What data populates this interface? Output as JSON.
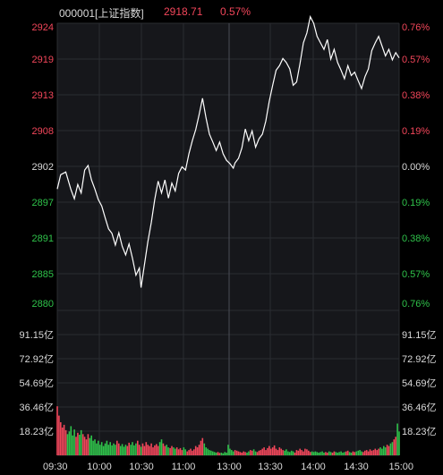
{
  "header": {
    "code_name": "000001[上证指数]",
    "price": "2918.71",
    "change_pct": "0.57%"
  },
  "colors": {
    "background": "#000000",
    "panel_bg": "#16171b",
    "grid": "#2a2c31",
    "up": "#f2465a",
    "down": "#2fc24a",
    "neutral": "#d9d9d9",
    "line": "#ffffff"
  },
  "price_axis": {
    "left": [
      "2924",
      "2919",
      "2913",
      "2908",
      "2902",
      "2897",
      "2891",
      "2885",
      "2880"
    ],
    "right": [
      "0.76%",
      "0.57%",
      "0.38%",
      "0.19%",
      "0.00%",
      "0.19%",
      "0.38%",
      "0.57%",
      "0.76%"
    ],
    "min": 2880,
    "max": 2924
  },
  "volume_axis": {
    "left": [
      "91.15亿",
      "72.92亿",
      "54.69亿",
      "36.46亿",
      "18.23亿"
    ],
    "right": [
      "91.15亿",
      "72.92亿",
      "54.69亿",
      "36.46亿",
      "18.23亿"
    ],
    "max": 109.38
  },
  "time_axis": [
    "09:30",
    "10:00",
    "10:30",
    "11:00",
    "13:00",
    "13:30",
    "14:00",
    "14:30",
    "15:00"
  ],
  "chart_data": {
    "type": "line",
    "price_series": [
      [
        0,
        2898.6
      ],
      [
        2,
        2900.8
      ],
      [
        5,
        2901.2
      ],
      [
        8,
        2898.5
      ],
      [
        10,
        2897.1
      ],
      [
        12,
        2899.3
      ],
      [
        14,
        2898.0
      ],
      [
        16,
        2901.5
      ],
      [
        18,
        2902.2
      ],
      [
        20,
        2900.0
      ],
      [
        22,
        2898.6
      ],
      [
        24,
        2897.0
      ],
      [
        26,
        2896.0
      ],
      [
        28,
        2894.2
      ],
      [
        30,
        2892.5
      ],
      [
        32,
        2891.8
      ],
      [
        34,
        2890.0
      ],
      [
        36,
        2891.9
      ],
      [
        38,
        2889.8
      ],
      [
        40,
        2888.5
      ],
      [
        42,
        2890.2
      ],
      [
        44,
        2888.0
      ],
      [
        46,
        2885.4
      ],
      [
        48,
        2886.5
      ],
      [
        49,
        2883.5
      ],
      [
        51,
        2887.0
      ],
      [
        53,
        2890.5
      ],
      [
        55,
        2893.5
      ],
      [
        57,
        2897.0
      ],
      [
        59,
        2899.8
      ],
      [
        61,
        2898.0
      ],
      [
        63,
        2900.0
      ],
      [
        65,
        2897.2
      ],
      [
        67,
        2899.5
      ],
      [
        69,
        2898.3
      ],
      [
        71,
        2901.0
      ],
      [
        73,
        2902.0
      ],
      [
        75,
        2901.5
      ],
      [
        77,
        2904.0
      ],
      [
        79,
        2906.0
      ],
      [
        81,
        2907.7
      ],
      [
        83,
        2910.0
      ],
      [
        85,
        2912.5
      ],
      [
        87,
        2909.5
      ],
      [
        89,
        2907.0
      ],
      [
        91,
        2905.8
      ],
      [
        93,
        2904.5
      ],
      [
        95,
        2905.8
      ],
      [
        97,
        2904.0
      ],
      [
        99,
        2903.0
      ],
      [
        101,
        2902.5
      ],
      [
        103,
        2901.8
      ],
      [
        104,
        2902.6
      ],
      [
        106,
        2903.3
      ],
      [
        108,
        2904.9
      ],
      [
        110,
        2907.8
      ],
      [
        112,
        2906.0
      ],
      [
        114,
        2907.5
      ],
      [
        116,
        2905.0
      ],
      [
        118,
        2906.3
      ],
      [
        120,
        2907.0
      ],
      [
        122,
        2909.0
      ],
      [
        124,
        2912.0
      ],
      [
        126,
        2914.5
      ],
      [
        128,
        2916.8
      ],
      [
        130,
        2917.5
      ],
      [
        132,
        2918.6
      ],
      [
        134,
        2918.0
      ],
      [
        136,
        2917.0
      ],
      [
        138,
        2914.5
      ],
      [
        140,
        2915.0
      ],
      [
        142,
        2917.8
      ],
      [
        144,
        2921.0
      ],
      [
        146,
        2922.5
      ],
      [
        148,
        2925.0
      ],
      [
        150,
        2924.0
      ],
      [
        152,
        2922.0
      ],
      [
        154,
        2921.0
      ],
      [
        156,
        2920.0
      ],
      [
        158,
        2921.5
      ],
      [
        160,
        2918.5
      ],
      [
        162,
        2920.0
      ],
      [
        164,
        2918.0
      ],
      [
        166,
        2916.8
      ],
      [
        168,
        2915.5
      ],
      [
        170,
        2917.5
      ],
      [
        172,
        2916.0
      ],
      [
        174,
        2916.5
      ],
      [
        176,
        2915.2
      ],
      [
        178,
        2914.0
      ],
      [
        180,
        2915.8
      ],
      [
        182,
        2917.0
      ],
      [
        184,
        2919.8
      ],
      [
        186,
        2921.0
      ],
      [
        188,
        2922.0
      ],
      [
        190,
        2920.5
      ],
      [
        192,
        2919.0
      ],
      [
        194,
        2920.0
      ],
      [
        196,
        2918.4
      ],
      [
        198,
        2919.5
      ],
      [
        200,
        2918.7
      ]
    ],
    "volume_series": [
      [
        0,
        37.0
      ],
      [
        1,
        30.0
      ],
      [
        2,
        25.0
      ],
      [
        3,
        21.0
      ],
      [
        4,
        23.0
      ],
      [
        5,
        19.0
      ],
      [
        6,
        16.0
      ],
      [
        7,
        18.0
      ],
      [
        8,
        22.0
      ],
      [
        9,
        15.0
      ],
      [
        10,
        19.5
      ],
      [
        11,
        14.0
      ],
      [
        12,
        17.0
      ],
      [
        13,
        15.5
      ],
      [
        14,
        19.0
      ],
      [
        15,
        16.0
      ],
      [
        16,
        14.0
      ],
      [
        17,
        12.0
      ],
      [
        18,
        16.0
      ],
      [
        19,
        13.0
      ],
      [
        20,
        15.0
      ],
      [
        21,
        11.0
      ],
      [
        22,
        12.0
      ],
      [
        23,
        9.0
      ],
      [
        24,
        11.0
      ],
      [
        25,
        8.0
      ],
      [
        26,
        10.0
      ],
      [
        27,
        7.0
      ],
      [
        28,
        9.0
      ],
      [
        29,
        11.0
      ],
      [
        30,
        8.0
      ],
      [
        31,
        10.0
      ],
      [
        32,
        7.5
      ],
      [
        33,
        9.0
      ],
      [
        34,
        8.0
      ],
      [
        35,
        11.0
      ],
      [
        36,
        9.0
      ],
      [
        37,
        7.0
      ],
      [
        38,
        8.5
      ],
      [
        39,
        6.5
      ],
      [
        40,
        8.0
      ],
      [
        41,
        7.0
      ],
      [
        42,
        9.5
      ],
      [
        43,
        8.0
      ],
      [
        44,
        10.0
      ],
      [
        45,
        7.5
      ],
      [
        46,
        9.0
      ],
      [
        47,
        11.0
      ],
      [
        48,
        8.0
      ],
      [
        49,
        6.5
      ],
      [
        50,
        9.0
      ],
      [
        51,
        7.0
      ],
      [
        52,
        10.0
      ],
      [
        53,
        8.0
      ],
      [
        54,
        7.0
      ],
      [
        55,
        9.0
      ],
      [
        56,
        6.0
      ],
      [
        57,
        7.5
      ],
      [
        58,
        8.5
      ],
      [
        59,
        7.0
      ],
      [
        60,
        10.0
      ],
      [
        61,
        12.0
      ],
      [
        62,
        9.0
      ],
      [
        63,
        7.0
      ],
      [
        64,
        8.0
      ],
      [
        65,
        6.0
      ],
      [
        66,
        5.5
      ],
      [
        67,
        7.0
      ],
      [
        68,
        6.0
      ],
      [
        69,
        5.0
      ],
      [
        70,
        6.0
      ],
      [
        71,
        4.5
      ],
      [
        72,
        5.5
      ],
      [
        73,
        4.0
      ],
      [
        74,
        6.0
      ],
      [
        75,
        4.5
      ],
      [
        76,
        3.0
      ],
      [
        77,
        4.0
      ],
      [
        78,
        5.0
      ],
      [
        79,
        3.5
      ],
      [
        80,
        4.5
      ],
      [
        81,
        7.0
      ],
      [
        82,
        6.0
      ],
      [
        83,
        8.0
      ],
      [
        84,
        11.0
      ],
      [
        85,
        13.0
      ],
      [
        86,
        9.0
      ],
      [
        87,
        6.0
      ],
      [
        88,
        5.0
      ],
      [
        89,
        4.0
      ],
      [
        90,
        3.5
      ],
      [
        91,
        3.0
      ],
      [
        92,
        2.5
      ],
      [
        93,
        2.0
      ],
      [
        94,
        2.5
      ],
      [
        95,
        1.8
      ],
      [
        96,
        2.0
      ],
      [
        97,
        1.5
      ],
      [
        98,
        2.5
      ],
      [
        99,
        2.0
      ],
      [
        100,
        8.0
      ],
      [
        101,
        5.0
      ],
      [
        102,
        4.0
      ],
      [
        103,
        3.0
      ],
      [
        104,
        4.0
      ],
      [
        105,
        3.5
      ],
      [
        106,
        3.0
      ],
      [
        107,
        2.5
      ],
      [
        108,
        2.0
      ],
      [
        109,
        3.0
      ],
      [
        110,
        2.5
      ],
      [
        111,
        2.0
      ],
      [
        112,
        3.0
      ],
      [
        113,
        4.0
      ],
      [
        114,
        3.5
      ],
      [
        115,
        4.5
      ],
      [
        116,
        3.0
      ],
      [
        117,
        2.5
      ],
      [
        118,
        3.5
      ],
      [
        119,
        4.0
      ],
      [
        120,
        5.0
      ],
      [
        121,
        6.0
      ],
      [
        122,
        4.0
      ],
      [
        123,
        5.5
      ],
      [
        124,
        7.0
      ],
      [
        125,
        5.0
      ],
      [
        126,
        6.0
      ],
      [
        127,
        7.5
      ],
      [
        128,
        5.0
      ],
      [
        129,
        4.0
      ],
      [
        130,
        6.0
      ],
      [
        131,
        5.0
      ],
      [
        132,
        4.0
      ],
      [
        133,
        3.5
      ],
      [
        134,
        4.5
      ],
      [
        135,
        3.0
      ],
      [
        136,
        2.5
      ],
      [
        137,
        3.5
      ],
      [
        138,
        3.0
      ],
      [
        139,
        2.0
      ],
      [
        140,
        4.0
      ],
      [
        141,
        3.5
      ],
      [
        142,
        5.0
      ],
      [
        143,
        4.0
      ],
      [
        144,
        3.0
      ],
      [
        145,
        5.0
      ],
      [
        146,
        4.5
      ],
      [
        147,
        3.5
      ],
      [
        148,
        2.5
      ],
      [
        149,
        3.0
      ],
      [
        150,
        2.5
      ],
      [
        151,
        3.0
      ],
      [
        152,
        2.5
      ],
      [
        153,
        2.0
      ],
      [
        154,
        2.5
      ],
      [
        155,
        3.0
      ],
      [
        156,
        2.0
      ],
      [
        157,
        2.5
      ],
      [
        158,
        2.0
      ],
      [
        159,
        3.0
      ],
      [
        160,
        2.5
      ],
      [
        161,
        2.0
      ],
      [
        162,
        3.0
      ],
      [
        163,
        2.5
      ],
      [
        164,
        2.0
      ],
      [
        165,
        2.5
      ],
      [
        166,
        3.0
      ],
      [
        167,
        2.0
      ],
      [
        168,
        2.5
      ],
      [
        169,
        3.0
      ],
      [
        170,
        3.5
      ],
      [
        171,
        2.5
      ],
      [
        172,
        2.0
      ],
      [
        173,
        3.0
      ],
      [
        174,
        2.5
      ],
      [
        175,
        3.0
      ],
      [
        176,
        3.5
      ],
      [
        177,
        4.0
      ],
      [
        178,
        3.0
      ],
      [
        179,
        2.5
      ],
      [
        180,
        3.5
      ],
      [
        181,
        4.0
      ],
      [
        182,
        3.0
      ],
      [
        183,
        4.5
      ],
      [
        184,
        3.5
      ],
      [
        185,
        4.0
      ],
      [
        186,
        5.0
      ],
      [
        187,
        4.0
      ],
      [
        188,
        5.0
      ],
      [
        189,
        6.0
      ],
      [
        190,
        5.0
      ],
      [
        191,
        7.0
      ],
      [
        192,
        6.0
      ],
      [
        193,
        8.0
      ],
      [
        194,
        7.0
      ],
      [
        195,
        9.0
      ],
      [
        196,
        10.0
      ],
      [
        197,
        12.0
      ],
      [
        198,
        14.0
      ],
      [
        199,
        24.0
      ],
      [
        200,
        18.0
      ]
    ],
    "total_minutes": 240,
    "x_scale_points": 200
  }
}
